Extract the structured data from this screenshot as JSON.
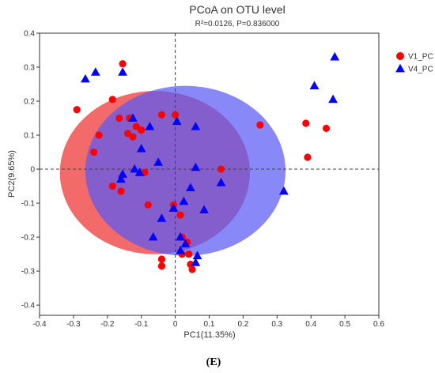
{
  "chart_data": {
    "type": "scatter",
    "title": "PCoA on OTU level",
    "subtitle": "R²=0.0126, P=0.836000",
    "xlabel": "PC1(11.35%)",
    "ylabel": "PC2(9.65%)",
    "xlim": [
      -0.4,
      0.6
    ],
    "ylim": [
      -0.43,
      0.4
    ],
    "xticks": [
      "-0.4",
      "-0.3",
      "-0.2",
      "-0.1",
      "0",
      "0.1",
      "0.2",
      "0.3",
      "0.4",
      "0.5",
      "0.6"
    ],
    "yticks": [
      "0.4",
      "0.3",
      "0.2",
      "0.1",
      "0",
      "-0.1",
      "-0.2",
      "-0.3",
      "-0.4"
    ],
    "legend_position": "top-right",
    "zero_lines": "dashed",
    "series": [
      {
        "name": "V1_PC",
        "marker": "circle",
        "color": "#ff0000",
        "ellipse_color": "#f05050",
        "ellipse": {
          "cx": -0.06,
          "cy": -0.01,
          "rx": 0.28,
          "ry": 0.24,
          "angle": 0
        },
        "points": [
          [
            -0.155,
            0.31
          ],
          [
            -0.29,
            0.175
          ],
          [
            -0.185,
            0.205
          ],
          [
            -0.165,
            0.15
          ],
          [
            -0.135,
            0.15
          ],
          [
            -0.115,
            0.125
          ],
          [
            -0.1,
            0.115
          ],
          [
            -0.04,
            0.16
          ],
          [
            0.0,
            0.16
          ],
          [
            -0.14,
            0.105
          ],
          [
            -0.125,
            0.095
          ],
          [
            -0.225,
            0.1
          ],
          [
            -0.24,
            0.05
          ],
          [
            -0.09,
            -0.01
          ],
          [
            -0.185,
            -0.05
          ],
          [
            -0.16,
            -0.065
          ],
          [
            -0.08,
            -0.105
          ],
          [
            -0.005,
            -0.105
          ],
          [
            0.015,
            -0.135
          ],
          [
            0.02,
            -0.2
          ],
          [
            0.035,
            -0.215
          ],
          [
            0.04,
            -0.25
          ],
          [
            0.02,
            -0.25
          ],
          [
            -0.04,
            -0.265
          ],
          [
            -0.04,
            -0.285
          ],
          [
            0.045,
            -0.28
          ],
          [
            0.05,
            -0.295
          ],
          [
            0.135,
            0.0
          ],
          [
            0.25,
            0.13
          ],
          [
            0.385,
            0.135
          ],
          [
            0.445,
            0.12
          ],
          [
            0.39,
            0.035
          ]
        ]
      },
      {
        "name": "V4_PC",
        "marker": "triangle",
        "color": "#0000ff",
        "ellipse_color": "#5a5af5",
        "ellipse": {
          "cx": 0.03,
          "cy": -0.005,
          "rx": 0.295,
          "ry": 0.25,
          "angle": 0
        },
        "points": [
          [
            -0.265,
            0.265
          ],
          [
            -0.235,
            0.285
          ],
          [
            -0.155,
            0.285
          ],
          [
            -0.125,
            0.15
          ],
          [
            -0.1,
            0.06
          ],
          [
            -0.075,
            0.125
          ],
          [
            0.005,
            0.14
          ],
          [
            0.06,
            0.125
          ],
          [
            -0.05,
            0.02
          ],
          [
            -0.12,
            0.0
          ],
          [
            -0.105,
            -0.01
          ],
          [
            -0.155,
            -0.015
          ],
          [
            -0.16,
            -0.03
          ],
          [
            0.06,
            0.005
          ],
          [
            0.045,
            -0.055
          ],
          [
            0.135,
            -0.04
          ],
          [
            0.025,
            -0.095
          ],
          [
            -0.005,
            -0.115
          ],
          [
            0.085,
            -0.12
          ],
          [
            -0.04,
            -0.145
          ],
          [
            -0.065,
            -0.2
          ],
          [
            0.015,
            -0.2
          ],
          [
            0.03,
            -0.22
          ],
          [
            0.015,
            -0.24
          ],
          [
            0.065,
            -0.255
          ],
          [
            0.06,
            -0.275
          ],
          [
            0.32,
            -0.065
          ],
          [
            0.41,
            0.245
          ],
          [
            0.47,
            0.33
          ],
          [
            0.465,
            0.205
          ]
        ]
      }
    ]
  },
  "figure": {
    "panel_label": "(E)"
  }
}
